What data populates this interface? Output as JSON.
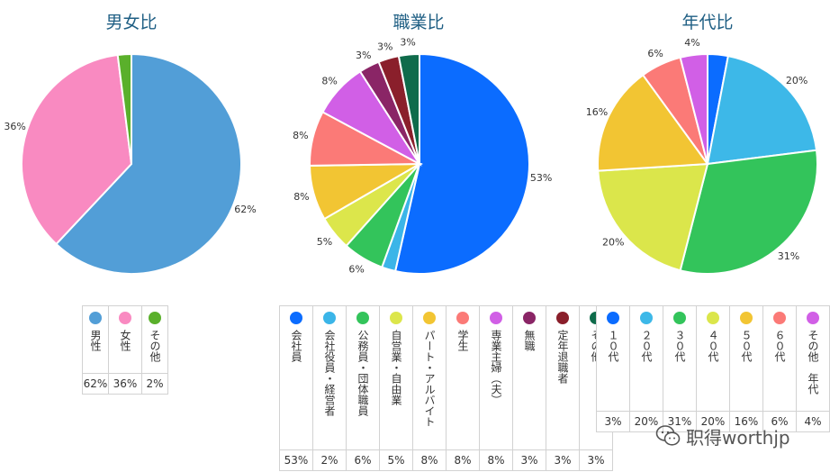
{
  "chart_data": [
    {
      "type": "pie",
      "title": "男女比",
      "categories": [
        "男性",
        "女性",
        "その他"
      ],
      "values": [
        62,
        36,
        2
      ],
      "value_labels": [
        "62%",
        "36%",
        ""
      ],
      "colors": [
        "#529ed7",
        "#f98ac1",
        "#5ab02b"
      ],
      "table_values": [
        "62%",
        "36%",
        "2%"
      ]
    },
    {
      "type": "pie",
      "title": "職業比",
      "categories": [
        "会社員",
        "会社役員・経営者",
        "公務員・団体職員",
        "自営業・自由業",
        "パート・アルバイト",
        "学生",
        "専業主婦（夫）",
        "無職",
        "定年退職者",
        "その他"
      ],
      "values": [
        53,
        2,
        6,
        5,
        8,
        8,
        8,
        3,
        3,
        3
      ],
      "value_labels": [
        "53%",
        "",
        "6%",
        "5%",
        "8%",
        "8%",
        "8%",
        "3%",
        "3%",
        "3%"
      ],
      "colors": [
        "#0b6cff",
        "#3bb5e8",
        "#33c45b",
        "#dce64b",
        "#f2c533",
        "#fb7a77",
        "#d15fe6",
        "#8a2566",
        "#8a1f2b",
        "#0f6b4b"
      ],
      "table_values": [
        "53%",
        "2%",
        "6%",
        "5%",
        "8%",
        "8%",
        "8%",
        "3%",
        "3%",
        "3%"
      ]
    },
    {
      "type": "pie",
      "title": "年代比",
      "categories": [
        "１０代",
        "２０代",
        "３０代",
        "４０代",
        "５０代",
        "６０代",
        "その他　年代"
      ],
      "values": [
        3,
        20,
        31,
        20,
        16,
        6,
        4
      ],
      "value_labels": [
        "",
        "20%",
        "31%",
        "20%",
        "16%",
        "6%",
        "4%"
      ],
      "colors": [
        "#0b6cff",
        "#3db8e8",
        "#33c45b",
        "#dbe64b",
        "#f2c533",
        "#fb7a77",
        "#d15fe6"
      ],
      "table_values": [
        "3%",
        "20%",
        "31%",
        "20%",
        "16%",
        "6%",
        "4%"
      ]
    }
  ],
  "watermark": {
    "text": "职得worthjp",
    "icon": "wechat-icon"
  }
}
